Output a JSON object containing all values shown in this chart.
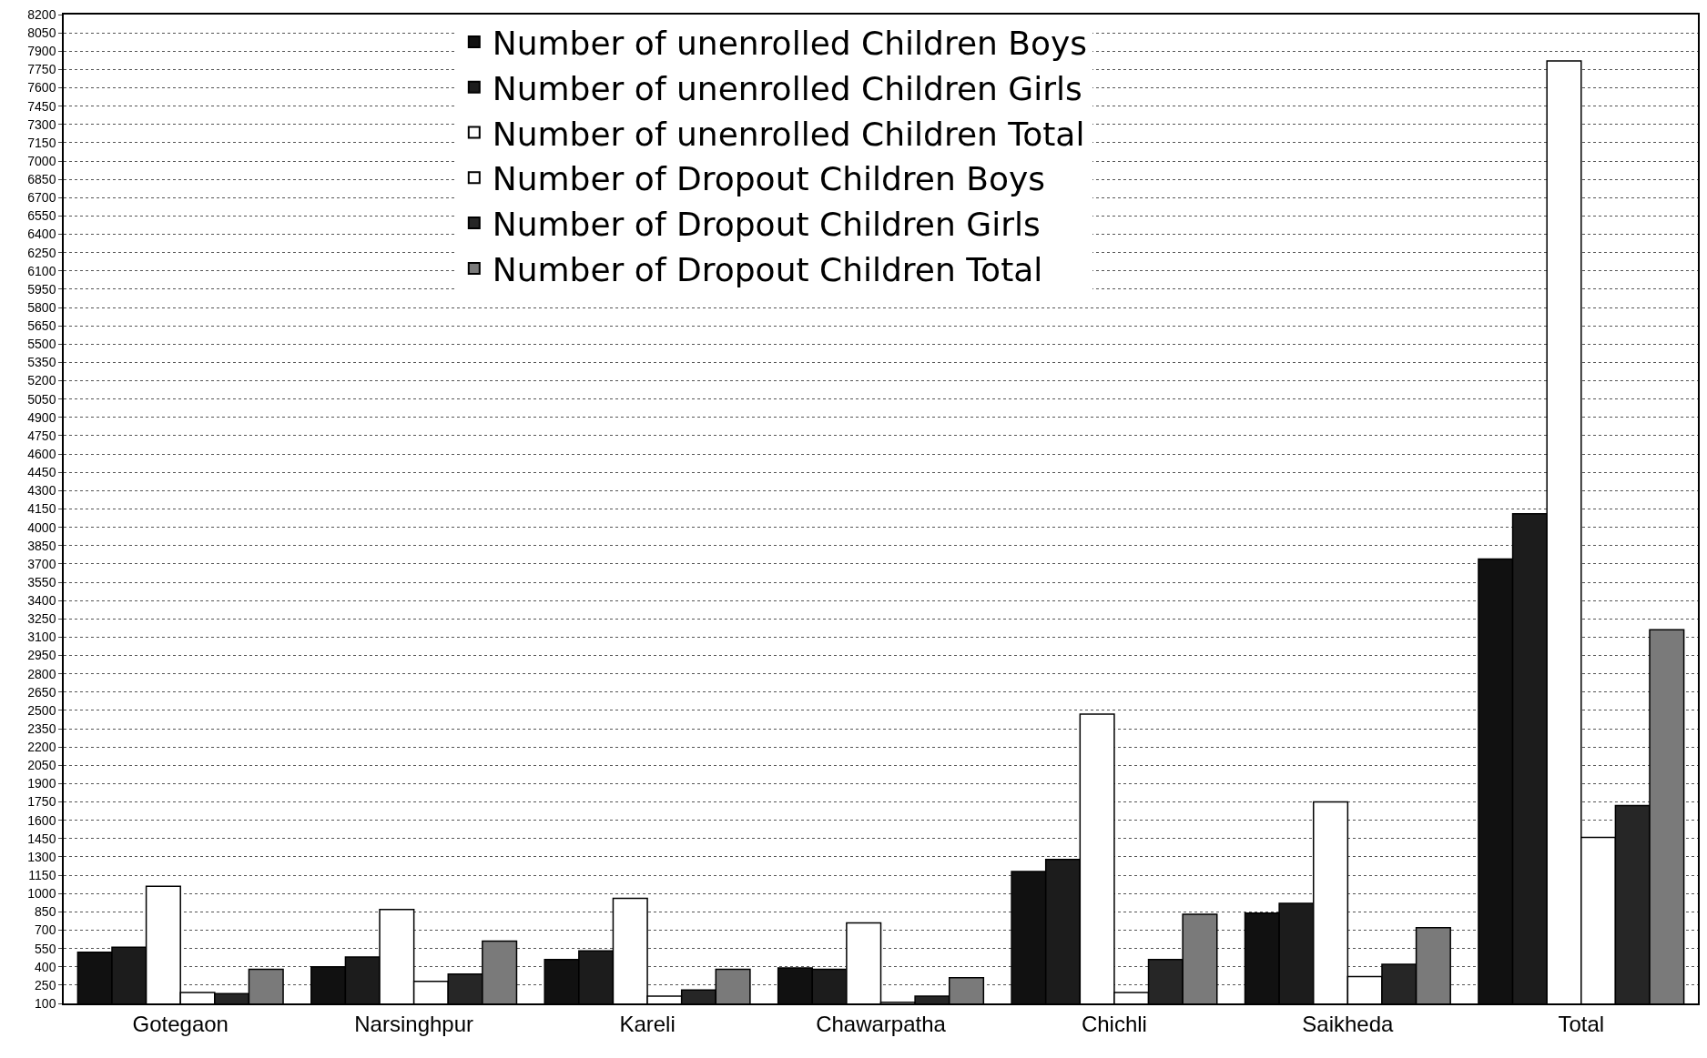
{
  "chart_data": {
    "type": "bar",
    "categories": [
      "Gotegaon",
      "Narsinghpur",
      "Kareli",
      "Chawarpatha",
      "Chichli",
      "Saikheda",
      "Total"
    ],
    "series": [
      {
        "name": "Number of unenrolled Children Boys",
        "color": "#111111",
        "values": [
          520,
          400,
          460,
          390,
          1180,
          840,
          3740
        ]
      },
      {
        "name": "Number of unenrolled Children Girls",
        "color": "#1c1c1c",
        "values": [
          560,
          480,
          530,
          380,
          1280,
          920,
          4110
        ]
      },
      {
        "name": "Number of unenrolled Children Total",
        "color": "#ffffff",
        "values": [
          1060,
          870,
          960,
          760,
          2470,
          1750,
          7820
        ]
      },
      {
        "name": "Number of Dropout Children Boys",
        "color": "#ffffff",
        "values": [
          190,
          280,
          160,
          110,
          190,
          320,
          1460
        ]
      },
      {
        "name": "Number of Dropout Children Girls",
        "color": "#262626",
        "values": [
          180,
          340,
          210,
          160,
          460,
          420,
          1720
        ]
      },
      {
        "name": "Number of Dropout Children Total",
        "color": "#7a7a7a",
        "values": [
          380,
          610,
          380,
          310,
          830,
          720,
          3160
        ]
      }
    ],
    "ylim": [
      100,
      8200
    ],
    "yticks": [
      100,
      250,
      400,
      550,
      700,
      850,
      1000,
      1150,
      1300,
      1450,
      1600,
      1750,
      1900,
      2050,
      2200,
      2350,
      2500,
      2650,
      2800,
      2950,
      3100,
      3250,
      3400,
      3550,
      3700,
      3850,
      4000,
      4150,
      4300,
      4450,
      4600,
      4750,
      4900,
      5050,
      5200,
      5350,
      5500,
      5650,
      5800,
      5950,
      6100,
      6250,
      6400,
      6550,
      6700,
      6850,
      7000,
      7150,
      7300,
      7450,
      7600,
      7750,
      7900,
      8050,
      8200
    ],
    "grid": "y",
    "legend": "top"
  }
}
